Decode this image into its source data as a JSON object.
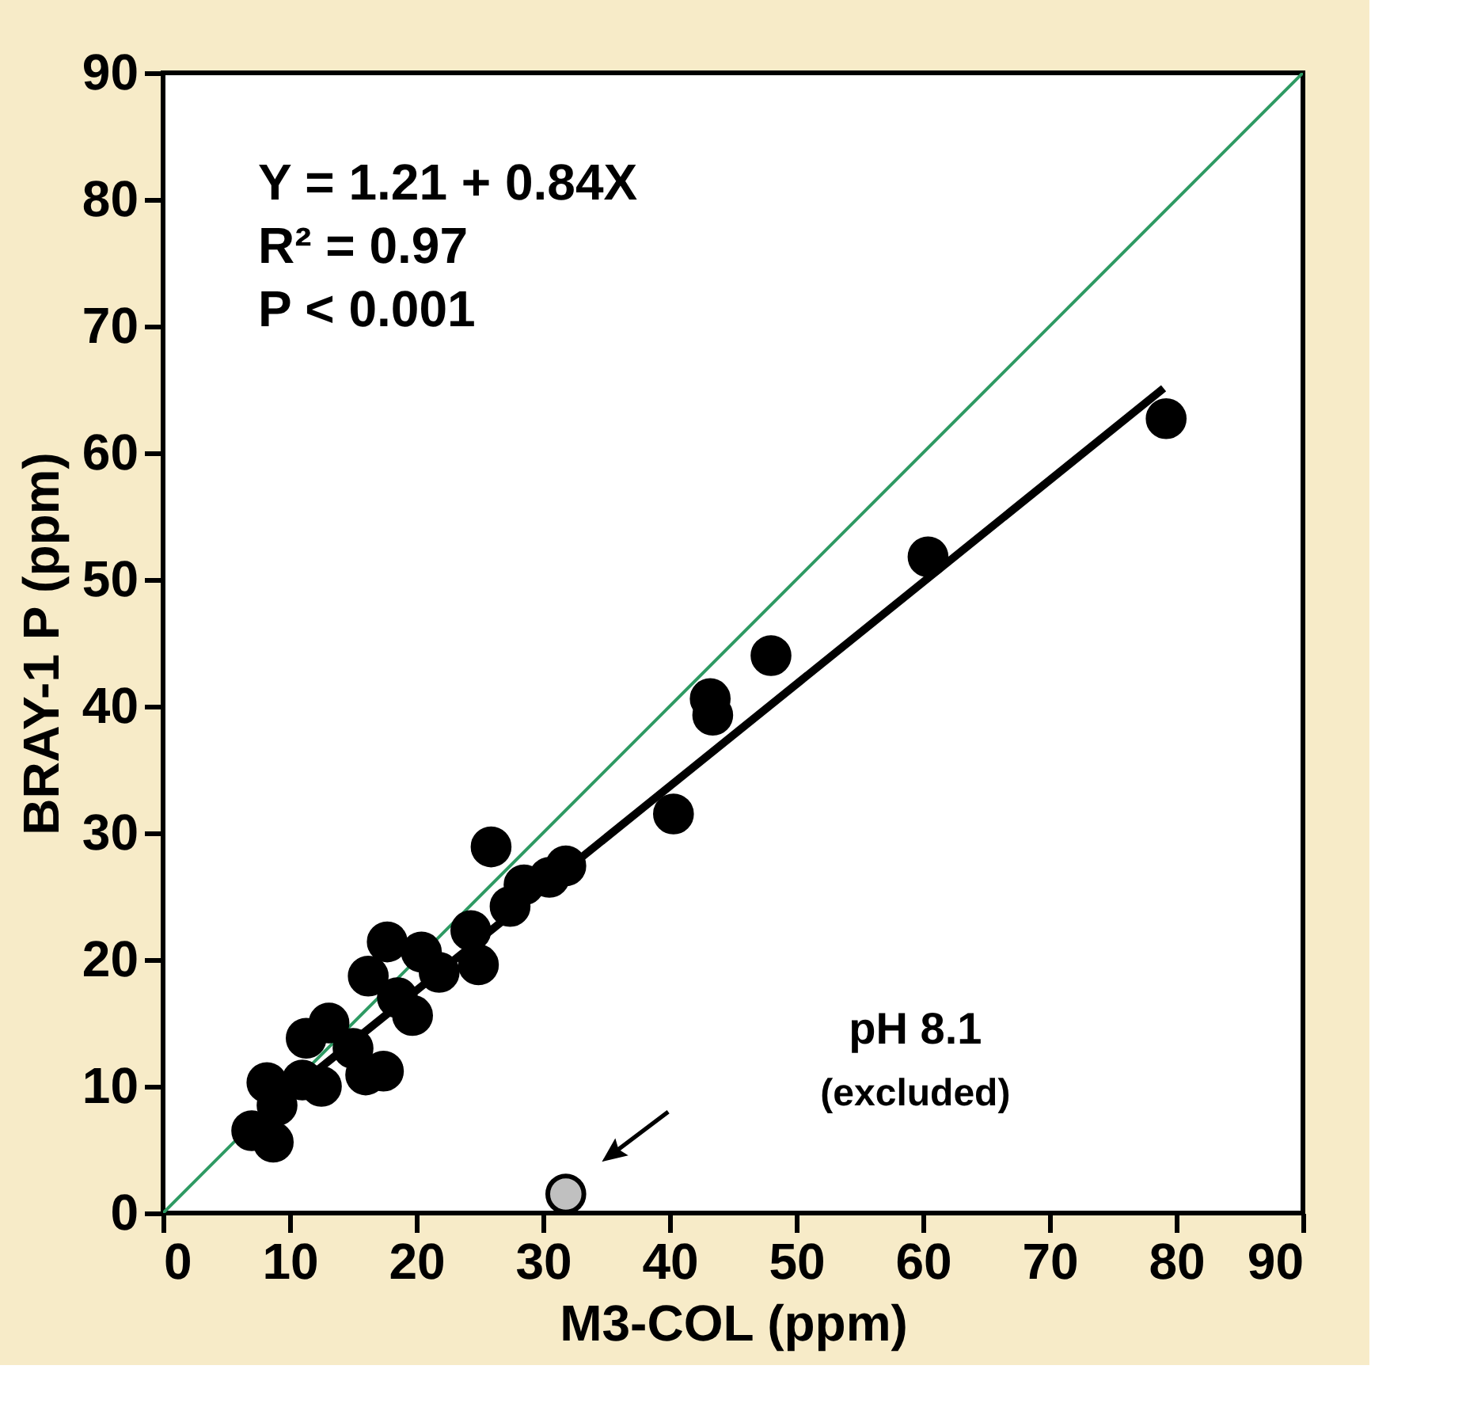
{
  "chart_data": {
    "type": "scatter",
    "xlabel": "M3-COL (ppm)",
    "ylabel": "BRAY-1 P (ppm)",
    "xlim": [
      0,
      90
    ],
    "ylim": [
      0,
      90
    ],
    "xticks": [
      0,
      10,
      20,
      30,
      40,
      50,
      60,
      70,
      80,
      90
    ],
    "yticks": [
      0,
      10,
      20,
      30,
      40,
      50,
      60,
      70,
      80,
      90
    ],
    "grid": false,
    "marker": "circle",
    "annotations": [
      "Y = 1.21 + 0.84X",
      "R² = 0.97",
      "P < 0.001",
      "pH 8.1",
      "(excluded)"
    ],
    "series": [
      {
        "type": "line",
        "color": "#2e9a63",
        "x": [
          0,
          90
        ],
        "values": [
          0,
          90
        ],
        "marker": "none",
        "line_style": "solid"
      },
      {
        "type": "line",
        "color": "#000000",
        "x": [
          7,
          79
        ],
        "values": [
          7.1,
          65.1
        ],
        "marker": "none",
        "line_style": "solid"
      },
      {
        "color": "#000000",
        "x": [
          79.2,
          60.4,
          48.0,
          43.2,
          43.4,
          40.3,
          25.9,
          31.8,
          30.5,
          28.5,
          27.4,
          24.3,
          24.9,
          21.8,
          17.7,
          16.2,
          20.4,
          19.7,
          17.4,
          16.0,
          13.1,
          11.3,
          8.2,
          8.7,
          7.0,
          9.0,
          11.0,
          12.5,
          15.0,
          18.5
        ],
        "values": [
          62.7,
          51.8,
          44.0,
          40.6,
          39.3,
          31.5,
          28.9,
          27.4,
          26.5,
          25.9,
          24.2,
          22.3,
          19.6,
          19.0,
          21.4,
          18.7,
          20.6,
          15.6,
          11.2,
          10.9,
          15.0,
          13.8,
          10.3,
          5.6,
          6.5,
          8.5,
          10.5,
          10.0,
          13.0,
          17.0
        ]
      },
      {
        "color": "#c0c0c0",
        "x": [
          31.8
        ],
        "values": [
          1.5
        ]
      }
    ]
  }
}
